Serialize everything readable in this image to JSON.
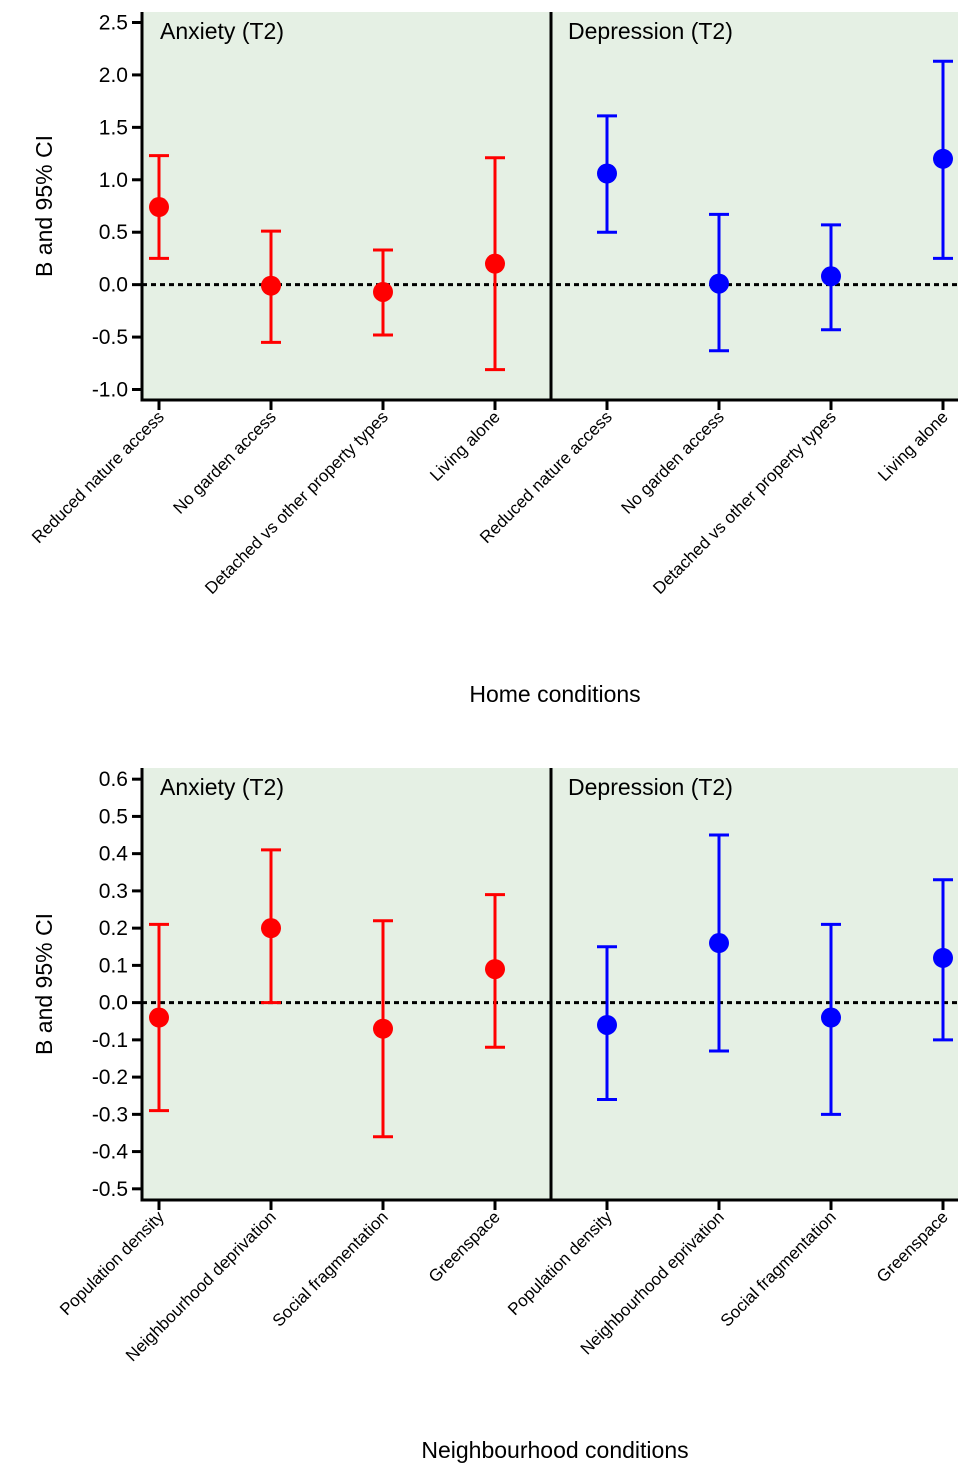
{
  "chart_data": [
    {
      "type": "scatter",
      "subtype": "point-with-error-bars",
      "xlabel": "Home conditions",
      "ylabel": "B and 95% CI",
      "ylim": [
        -1.1,
        2.6
      ],
      "yticks": [
        "-1.0",
        "-0.5",
        "0.0",
        "0.5",
        "1.0",
        "1.5",
        "2.0",
        "2.5"
      ],
      "reference_line": 0,
      "background": "#e5f0e4",
      "panels": [
        {
          "title": "Anxiety (T2)",
          "color": "#ff0000",
          "categories": [
            "Reduced nature access",
            "No garden access",
            "Detached vs other property types",
            "Living alone"
          ],
          "estimates": [
            0.74,
            -0.01,
            -0.07,
            0.2
          ],
          "ci_lower": [
            0.25,
            -0.55,
            -0.48,
            -0.81
          ],
          "ci_upper": [
            1.23,
            0.51,
            0.33,
            1.21
          ]
        },
        {
          "title": "Depression (T2)",
          "color": "#0000ff",
          "categories": [
            "Reduced nature access",
            "No garden access",
            "Detached vs other property types",
            "Living alone"
          ],
          "estimates": [
            1.06,
            0.01,
            0.08,
            1.2
          ],
          "ci_lower": [
            0.5,
            -0.63,
            -0.43,
            0.25
          ],
          "ci_upper": [
            1.61,
            0.67,
            0.57,
            2.13
          ]
        }
      ]
    },
    {
      "type": "scatter",
      "subtype": "point-with-error-bars",
      "xlabel": "Neighbourhood conditions",
      "ylabel": "B and 95% CI",
      "ylim": [
        -0.53,
        0.63
      ],
      "yticks": [
        "-0.5",
        "-0.4",
        "-0.3",
        "-0.2",
        "-0.1",
        "0.0",
        "0.1",
        "0.2",
        "0.3",
        "0.4",
        "0.5",
        "0.6"
      ],
      "reference_line": 0,
      "background": "#e5f0e4",
      "panels": [
        {
          "title": "Anxiety (T2)",
          "color": "#ff0000",
          "categories": [
            "Population density",
            "Neighbourhood deprivation",
            "Social fragmentation",
            "Greenspace"
          ],
          "estimates": [
            -0.04,
            0.2,
            -0.07,
            0.09
          ],
          "ci_lower": [
            -0.29,
            0.0,
            -0.36,
            -0.12
          ],
          "ci_upper": [
            0.21,
            0.41,
            0.22,
            0.29
          ]
        },
        {
          "title": "Depression (T2)",
          "color": "#0000ff",
          "categories": [
            "Population density",
            "Neighbourhood eprivation",
            "Social fragmentation",
            "Greenspace"
          ],
          "estimates": [
            -0.06,
            0.16,
            -0.04,
            0.12
          ],
          "ci_lower": [
            -0.26,
            -0.13,
            -0.3,
            -0.1
          ],
          "ci_upper": [
            0.15,
            0.45,
            0.21,
            0.33
          ]
        }
      ]
    }
  ]
}
